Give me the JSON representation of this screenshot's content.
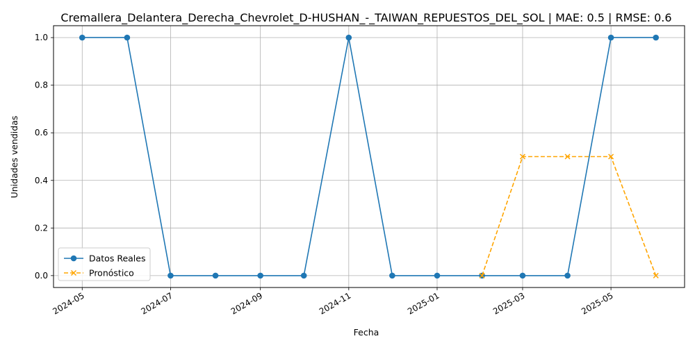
{
  "chart_data": {
    "type": "line",
    "title": "Cremallera_Delantera_Derecha_Chevrolet_D-HUSHAN_-_TAIWAN_REPUESTOS_DEL_SOL | MAE: 0.5 | RMSE: 0.6",
    "xlabel": "Fecha",
    "ylabel": "Unidades vendidas",
    "ylim": [
      -0.05,
      1.05
    ],
    "yticks": [
      0.0,
      0.2,
      0.4,
      0.6,
      0.8,
      1.0
    ],
    "ytick_labels": [
      "0.0",
      "0.2",
      "0.4",
      "0.6",
      "0.8",
      "1.0"
    ],
    "xticks": [
      "2024-05",
      "2024-07",
      "2024-09",
      "2024-11",
      "2025-01",
      "2025-03",
      "2025-05"
    ],
    "grid": true,
    "legend_position": "lower-left",
    "series": [
      {
        "name": "Datos Reales",
        "color": "#1f77b4",
        "line_style": "solid",
        "marker": "circle",
        "x": [
          "2024-05",
          "2024-06",
          "2024-07",
          "2024-08",
          "2024-09",
          "2024-10",
          "2024-11",
          "2024-12",
          "2025-01",
          "2025-02",
          "2025-03",
          "2025-04",
          "2025-05",
          "2025-06"
        ],
        "values": [
          1,
          1,
          0,
          0,
          0,
          0,
          1,
          0,
          0,
          0,
          0,
          0,
          1,
          1
        ]
      },
      {
        "name": "Pronóstico",
        "color": "#ffa500",
        "line_style": "dashed",
        "marker": "x",
        "x": [
          "2025-02",
          "2025-03",
          "2025-04",
          "2025-05",
          "2025-06"
        ],
        "values": [
          0,
          0.5,
          0.5,
          0.5,
          0
        ]
      }
    ]
  }
}
